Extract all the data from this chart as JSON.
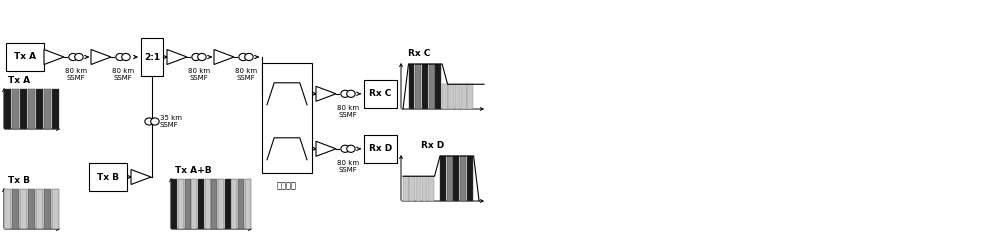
{
  "fig_width": 10.0,
  "fig_height": 2.39,
  "dpi": 100,
  "bg_color": "#ffffff",
  "lc": "#000000",
  "lw": 0.8,
  "dark_bar": "#1a1a1a",
  "mid_bar": "#808080",
  "light_bar": "#c8c8c8",
  "labels": {
    "txA": "Tx A",
    "txB": "Tx B",
    "split": "2:1",
    "rxC": "Rx C",
    "rxD": "Rx D",
    "filter": "光滤波器",
    "ssmf80": "80 km\nSSMF",
    "ssmf35": "35 km\nSSMF",
    "txAB": "Tx A+B",
    "txA_sp": "Tx A",
    "txB_sp": "Tx B",
    "rxC_sp": "Rx C",
    "rxD_sp": "Rx D"
  },
  "top_y": 1.82,
  "bot_y": 0.62,
  "xlim": [
    0,
    10.0
  ],
  "ylim": [
    0,
    2.39
  ]
}
